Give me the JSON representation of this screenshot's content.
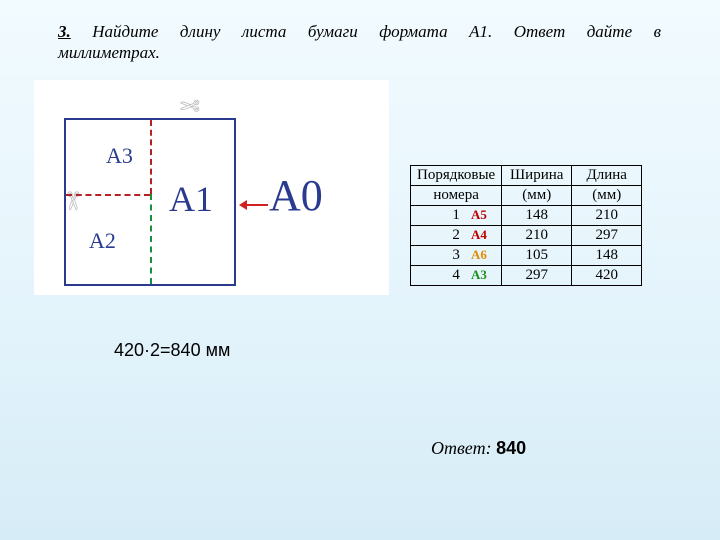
{
  "task": {
    "number": "3.",
    "line1": "Найдите длину листа бумаги формата А1. Ответ дайте в",
    "line2": "миллиметрах."
  },
  "diagram": {
    "labels": {
      "a0": "А0",
      "a1": "А1",
      "a2": "А2",
      "a3": "А3"
    },
    "scissor_glyph": "✄",
    "colors": {
      "box_border": "#2a3b8f",
      "dash_red": "#b22222",
      "dash_green": "#1a8f3a",
      "arrow": "#d21f1f",
      "label": "#2a3b8f"
    }
  },
  "table": {
    "headers": {
      "num": "Порядковые",
      "num2": "номера",
      "width": "Ширина",
      "width2": "(мм)",
      "len": "Длина",
      "len2": "(мм)"
    },
    "rows": [
      {
        "n": "1",
        "label": "А5",
        "label_color": "red",
        "w": "148",
        "l": "210"
      },
      {
        "n": "2",
        "label": "А4",
        "label_color": "red",
        "w": "210",
        "l": "297"
      },
      {
        "n": "3",
        "label": "А6",
        "label_color": "orange",
        "w": "105",
        "l": "148"
      },
      {
        "n": "4",
        "label": "А3",
        "label_color": "green",
        "w": "297",
        "l": "420"
      }
    ]
  },
  "calc": "420·2=840 мм",
  "answer": {
    "label": "Ответ:",
    "value": "840"
  }
}
